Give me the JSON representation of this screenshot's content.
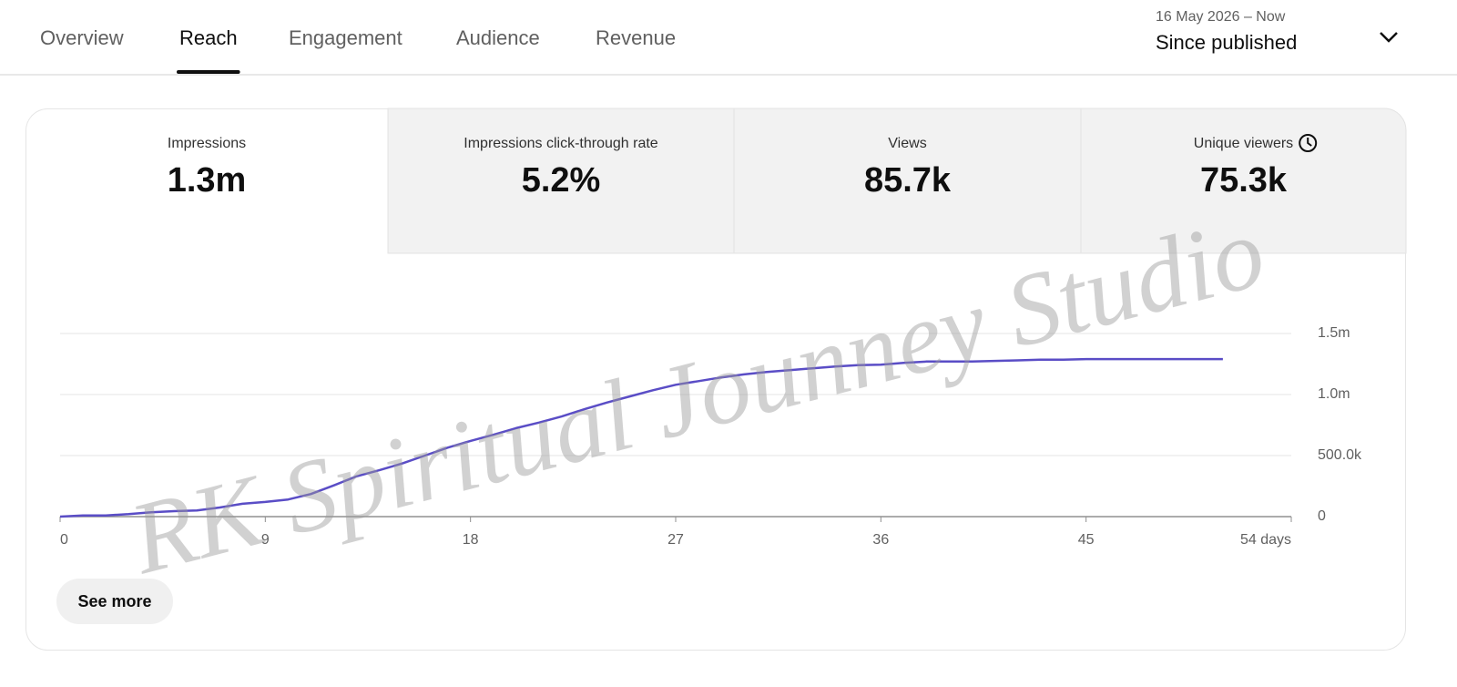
{
  "tabs": [
    "Overview",
    "Reach",
    "Engagement",
    "Audience",
    "Revenue"
  ],
  "active_tab": 1,
  "date_range": {
    "range": "16 May 2026 – Now",
    "label": "Since published"
  },
  "metrics": [
    {
      "label": "Impressions",
      "value": "1.3m"
    },
    {
      "label": "Impressions click-through rate",
      "value": "5.2%"
    },
    {
      "label": "Views",
      "value": "85.7k"
    },
    {
      "label": "Unique viewers",
      "value": "75.3k"
    }
  ],
  "selected_metric": 0,
  "chart_data": {
    "type": "line",
    "color": "#5a4dc6",
    "x": [
      0,
      1,
      2,
      3,
      4,
      5,
      6,
      7,
      8,
      9,
      10,
      11,
      12,
      13,
      14,
      15,
      16,
      17,
      18,
      19,
      20,
      21,
      22,
      23,
      24,
      25,
      26,
      27,
      28,
      29,
      30,
      31,
      32,
      33,
      34,
      35,
      36,
      37,
      38,
      39,
      40,
      41,
      42,
      43,
      44,
      45,
      46,
      47,
      48,
      49,
      50,
      51
    ],
    "values": [
      0,
      10000,
      10000,
      20000,
      35000,
      45000,
      50000,
      75000,
      105000,
      120000,
      140000,
      185000,
      255000,
      330000,
      380000,
      435000,
      500000,
      565000,
      620000,
      670000,
      725000,
      770000,
      820000,
      880000,
      935000,
      985000,
      1035000,
      1080000,
      1110000,
      1140000,
      1165000,
      1185000,
      1200000,
      1215000,
      1230000,
      1240000,
      1245000,
      1260000,
      1270000,
      1270000,
      1270000,
      1275000,
      1280000,
      1285000,
      1285000,
      1290000,
      1290000,
      1290000,
      1290000,
      1290000,
      1290000,
      1290000
    ],
    "xlim": [
      0,
      54
    ],
    "xticks": [
      0,
      9,
      18,
      27,
      36,
      45,
      {
        "value": 54,
        "label": "54 days"
      }
    ],
    "ylim": [
      0,
      1500000
    ],
    "yticks": [
      0,
      {
        "value": 500000,
        "label": "500.0k"
      },
      {
        "value": 1000000,
        "label": "1.0m"
      },
      {
        "value": 1500000,
        "label": "1.5m"
      }
    ],
    "grid": true
  },
  "button": "See more",
  "watermark": "RK Spiritual Jounney Studio"
}
